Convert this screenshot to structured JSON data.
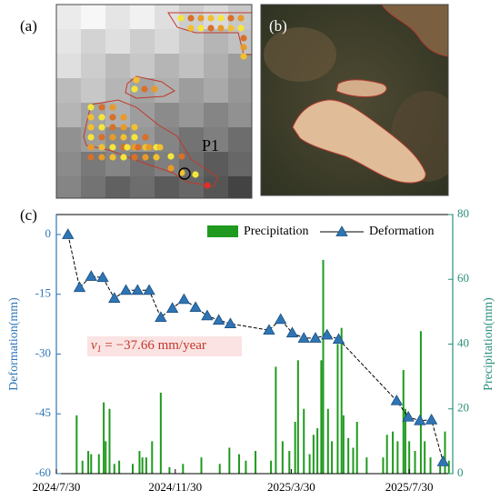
{
  "panels": {
    "a": {
      "label": "(a)",
      "point": "P1"
    },
    "b": {
      "label": "(b)"
    },
    "c": {
      "label": "(c)"
    }
  },
  "chart_data": {
    "type": "combo",
    "annotation": {
      "symbol": "v",
      "subscript": "1",
      "text": " = −37.66 mm/year"
    },
    "ylabel": "Deformation(mm)",
    "y2label": "Precipitation(mm)",
    "xlim": [
      "2024-07-30",
      "2025-09-13"
    ],
    "xticks": [
      {
        "value": "2024-07-30",
        "label": "2024/7/30"
      },
      {
        "value": "2024-11-30",
        "label": "2024/11/30"
      },
      {
        "value": "2025-03-30",
        "label": "2025/3/30"
      },
      {
        "value": "2025-07-30",
        "label": "2025/7/30"
      }
    ],
    "ylim": [
      -60,
      5
    ],
    "yticks": [
      0,
      -15,
      -30,
      -45,
      -60
    ],
    "y2lim": [
      0,
      80
    ],
    "y2ticks": [
      0,
      20,
      40,
      60,
      80
    ],
    "legend": "top-right",
    "series": [
      {
        "name": "Precipitation",
        "type": "bar",
        "axis": "y2",
        "color": "#1f9a1f",
        "x": [
          "2024-08-20",
          "2024-08-26",
          "2024-09-01",
          "2024-09-04",
          "2024-09-12",
          "2024-09-17",
          "2024-09-19",
          "2024-09-23",
          "2024-09-28",
          "2024-10-03",
          "2024-10-17",
          "2024-10-24",
          "2024-10-27",
          "2024-10-31",
          "2024-11-06",
          "2024-11-15",
          "2024-11-24",
          "2024-12-08",
          "2024-12-27",
          "2025-01-15",
          "2025-01-25",
          "2025-02-04",
          "2025-02-11",
          "2025-02-21",
          "2025-03-09",
          "2025-03-14",
          "2025-03-21",
          "2025-03-28",
          "2025-04-03",
          "2025-04-06",
          "2025-04-12",
          "2025-04-18",
          "2025-04-22",
          "2025-04-26",
          "2025-04-30",
          "2025-05-02",
          "2025-05-07",
          "2025-05-11",
          "2025-05-17",
          "2025-05-21",
          "2025-05-23",
          "2025-05-28",
          "2025-06-02",
          "2025-06-06",
          "2025-06-16",
          "2025-07-03",
          "2025-07-07",
          "2025-07-13",
          "2025-07-18",
          "2025-07-24",
          "2025-07-26",
          "2025-07-30",
          "2025-08-05",
          "2025-08-11",
          "2025-08-15",
          "2025-08-21",
          "2025-08-31",
          "2025-09-05",
          "2025-09-09"
        ],
        "values": [
          18,
          4,
          7,
          6,
          6,
          22,
          10,
          20,
          3,
          4,
          3,
          7,
          5,
          5,
          10,
          25,
          2,
          3,
          5,
          3,
          8,
          6,
          4,
          7,
          4,
          33,
          10,
          7,
          16,
          35,
          20,
          6,
          12,
          14,
          35,
          66,
          20,
          10,
          40,
          45,
          18,
          11,
          8,
          16,
          5,
          5,
          12,
          13,
          10,
          32,
          20,
          10,
          7,
          44,
          10,
          5,
          3,
          13,
          4
        ]
      },
      {
        "name": "Deformation",
        "type": "line",
        "color": "#2e75b6",
        "x": [
          "2024-08-11",
          "2024-08-23",
          "2024-09-04",
          "2024-09-16",
          "2024-09-28",
          "2024-10-10",
          "2024-10-22",
          "2024-11-03",
          "2024-11-15",
          "2024-11-27",
          "2024-12-09",
          "2024-12-21",
          "2025-01-02",
          "2025-01-14",
          "2025-01-26",
          "2025-03-07",
          "2025-03-19",
          "2025-03-31",
          "2025-04-12",
          "2025-04-24",
          "2025-05-06",
          "2025-05-18",
          "2025-07-17",
          "2025-07-29",
          "2025-08-10",
          "2025-08-22",
          "2025-09-03"
        ],
        "values": [
          0,
          -13.3,
          -10.5,
          -10.8,
          -16,
          -14,
          -14,
          -14,
          -20.8,
          -18.5,
          -16.3,
          -18.3,
          -20.4,
          -21.5,
          -22.4,
          -24,
          -21.3,
          -24.7,
          -26,
          -26,
          -25.2,
          -26.3,
          -41.7,
          -45.8,
          -46.7,
          -46.5,
          -57
        ]
      }
    ]
  }
}
